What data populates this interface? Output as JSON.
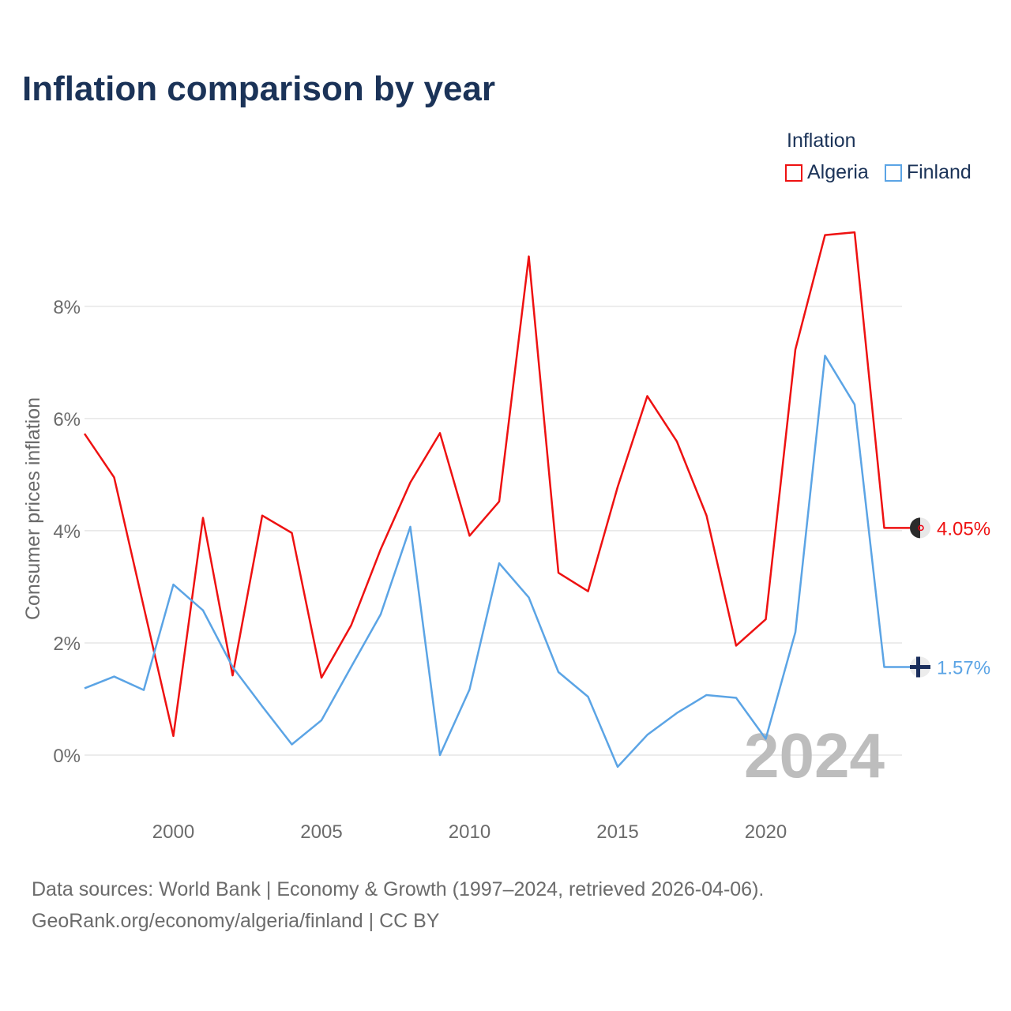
{
  "chart_data": {
    "type": "line",
    "title": "Inflation comparison by year",
    "ylabel": "Consumer prices inflation",
    "xlabel": "",
    "legend_title": "Inflation",
    "legend_position": "top-right",
    "x": [
      1997,
      1998,
      1999,
      2000,
      2001,
      2002,
      2003,
      2004,
      2005,
      2006,
      2007,
      2008,
      2009,
      2010,
      2011,
      2012,
      2013,
      2014,
      2015,
      2016,
      2017,
      2018,
      2019,
      2020,
      2021,
      2022,
      2023,
      2024
    ],
    "xlim": [
      1997,
      2024.6
    ],
    "ylim": [
      -1,
      9.8
    ],
    "x_ticks": [
      2000,
      2005,
      2010,
      2015,
      2020
    ],
    "x_tick_labels": [
      "2000",
      "2005",
      "2010",
      "2015",
      "2020"
    ],
    "y_ticks": [
      0,
      2,
      4,
      6,
      8
    ],
    "y_tick_labels": [
      "0%",
      "2%",
      "4%",
      "6%",
      "8%"
    ],
    "grid": true,
    "series": [
      {
        "name": "Algeria",
        "color": "#ee1111",
        "values": [
          5.73,
          4.95,
          2.64,
          0.34,
          4.23,
          1.42,
          4.27,
          3.96,
          1.38,
          2.31,
          3.67,
          4.86,
          5.74,
          3.91,
          4.52,
          8.89,
          3.25,
          2.92,
          4.78,
          6.4,
          5.59,
          4.27,
          1.95,
          2.42,
          7.23,
          9.27,
          9.32,
          4.05
        ],
        "end_label": "4.05%"
      },
      {
        "name": "Finland",
        "color": "#5ba4e5",
        "values": [
          1.19,
          1.4,
          1.16,
          3.04,
          2.58,
          1.57,
          0.87,
          0.19,
          0.62,
          1.57,
          2.51,
          4.07,
          0.0,
          1.17,
          3.42,
          2.81,
          1.48,
          1.04,
          -0.21,
          0.36,
          0.75,
          1.07,
          1.02,
          0.29,
          2.19,
          7.12,
          6.25,
          1.57
        ],
        "end_label": "1.57%"
      }
    ],
    "annotation": "2024"
  },
  "footer": {
    "line1": "Data sources: World Bank | Economy & Growth (1997–2024, retrieved 2026-04-06).",
    "line2": "GeoRank.org/economy/algeria/finland | CC BY"
  }
}
